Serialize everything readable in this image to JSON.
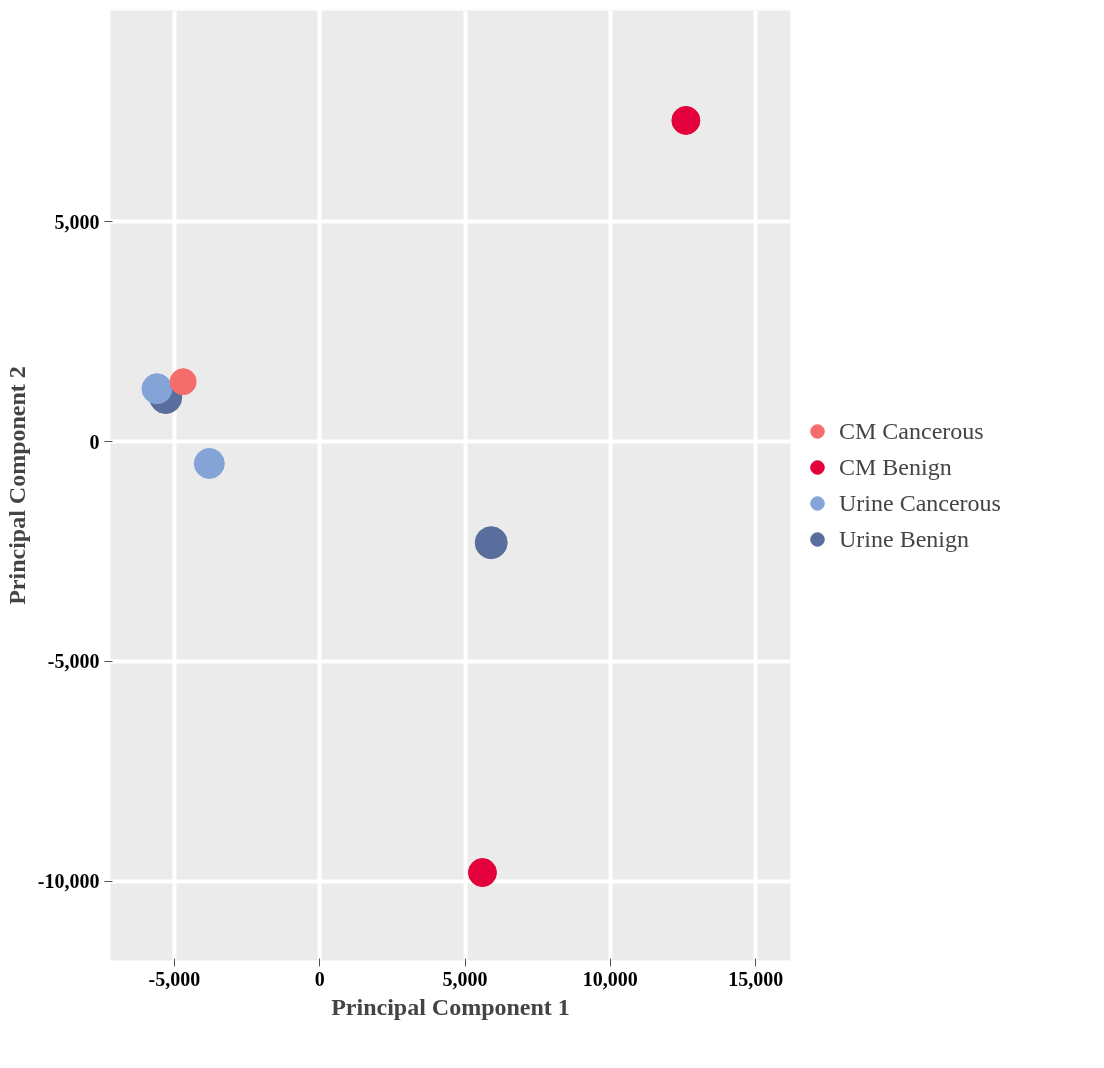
{
  "chart_data": {
    "type": "scatter",
    "xlabel": "Principal Component 1",
    "ylabel": "Principal Component 2",
    "xlim": [
      -7200,
      16200
    ],
    "ylim": [
      -11800,
      9800
    ],
    "xticks": [
      {
        "value": -5000,
        "label": "-5,000"
      },
      0,
      {
        "value": 5000,
        "label": "5,000"
      },
      {
        "value": 10000,
        "label": "10,000"
      },
      {
        "value": 15000,
        "label": "15,000"
      }
    ],
    "yticks": [
      {
        "value": -10000,
        "label": "-10,000"
      },
      {
        "value": -5000,
        "label": "-5,000"
      },
      0,
      {
        "value": 5000,
        "label": "5,000"
      }
    ],
    "grid": true,
    "legend": "right",
    "marker": "circle",
    "series": [
      {
        "name": "CM Cancerous",
        "color": "#f46d6b",
        "x": [
          -4700
        ],
        "values": [
          1360
        ]
      },
      {
        "name": "CM Benign",
        "color": "#e4003a",
        "x": [
          12600,
          5600
        ],
        "values": [
          7300,
          -9800
        ]
      },
      {
        "name": "Urine Cancerous",
        "color": "#84a4d8",
        "x": [
          -5600,
          -3800
        ],
        "values": [
          1200,
          -500
        ]
      },
      {
        "name": "Urine Benign",
        "color": "#5a6e9e",
        "x": [
          -5300,
          5900
        ],
        "values": [
          1000,
          -2300
        ]
      }
    ]
  }
}
